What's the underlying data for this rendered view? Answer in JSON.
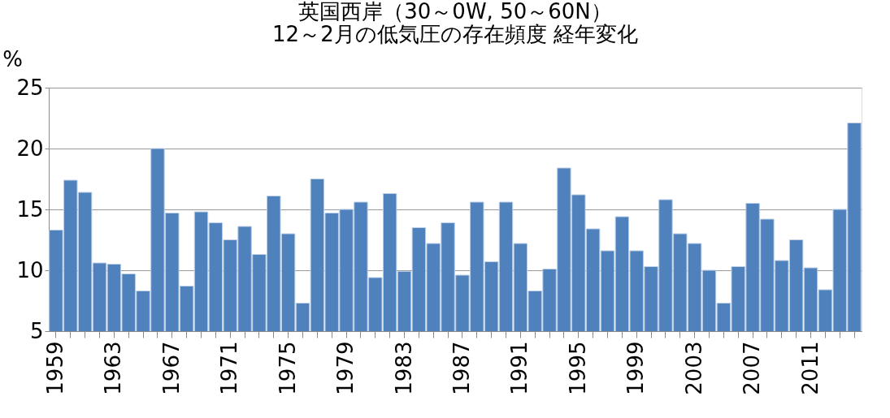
{
  "chart_data": {
    "type": "bar",
    "title": [
      "英国西岸（30～0W, 50～60N）",
      "12～2月の低気圧の存在頻度 経年変化"
    ],
    "ylabel": "%",
    "categories": [
      "1959",
      null,
      null,
      null,
      "1963",
      null,
      null,
      null,
      "1967",
      null,
      null,
      null,
      "1971",
      null,
      null,
      null,
      "1975",
      null,
      null,
      null,
      "1979",
      null,
      null,
      null,
      "1983",
      null,
      null,
      null,
      "1987",
      null,
      null,
      null,
      "1991",
      null,
      null,
      null,
      "1995",
      null,
      null,
      null,
      "1999",
      null,
      null,
      null,
      "2003",
      null,
      null,
      null,
      "2007",
      null,
      null,
      null,
      "2011",
      null,
      null,
      null
    ],
    "values": [
      13.3,
      17.4,
      16.4,
      10.6,
      10.5,
      9.7,
      8.3,
      20.0,
      14.7,
      8.7,
      14.8,
      13.9,
      12.5,
      13.6,
      11.3,
      16.1,
      13.0,
      7.3,
      17.5,
      14.7,
      15.0,
      15.6,
      9.4,
      16.3,
      9.9,
      13.5,
      12.2,
      13.9,
      9.6,
      15.6,
      10.7,
      15.6,
      12.2,
      8.3,
      10.1,
      18.4,
      16.2,
      13.4,
      11.6,
      14.4,
      11.6,
      10.3,
      15.8,
      13.0,
      12.2,
      10.0,
      7.3,
      10.3,
      15.5,
      14.2,
      10.8,
      12.5,
      10.2,
      8.4,
      15.0,
      22.1
    ],
    "color": "#4f81bd",
    "ylim": [
      5,
      25
    ],
    "yticks": [
      5,
      10,
      15,
      20,
      25
    ],
    "grid": "y"
  }
}
